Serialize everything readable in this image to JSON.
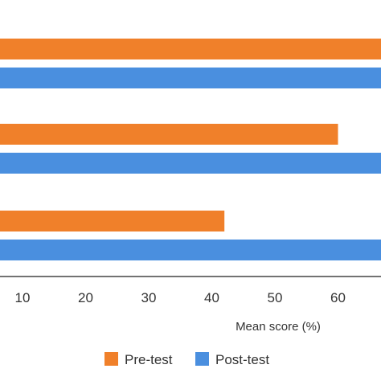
{
  "chart_data": {
    "type": "bar",
    "orientation": "horizontal",
    "title": "",
    "xlabel": "Mean score (%)",
    "ylabel": "",
    "xticks": [
      10,
      20,
      30,
      40,
      50,
      60
    ],
    "xlim": [
      0,
      66
    ],
    "categories": [
      "",
      "",
      ""
    ],
    "series": [
      {
        "name": "Pre-test",
        "color": "#F0802A",
        "values": [
          70,
          60,
          42
        ]
      },
      {
        "name": "Post-test",
        "color": "#4A8FDF",
        "values": [
          70,
          70,
          70
        ]
      }
    ],
    "legend": "bottom-center",
    "grid": false
  }
}
